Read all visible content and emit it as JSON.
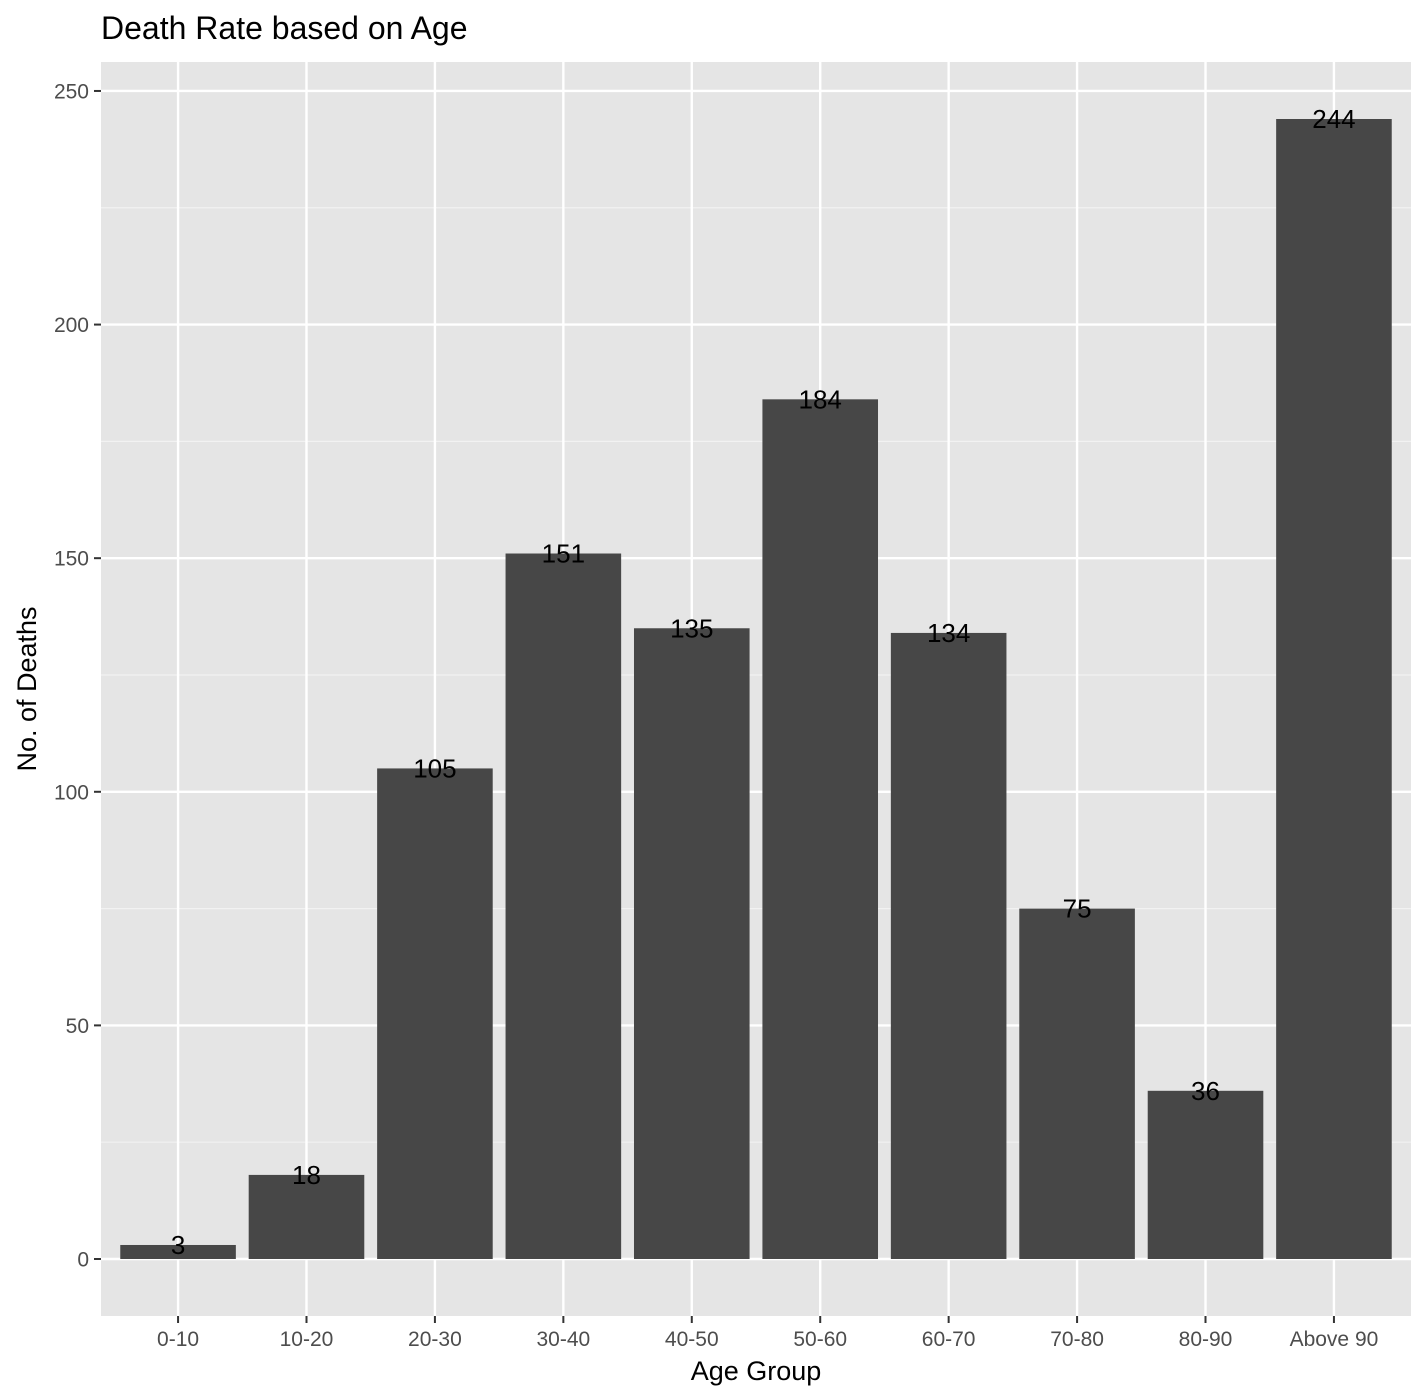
{
  "chart_data": {
    "type": "bar",
    "title": "Death Rate based on Age",
    "xlabel": "Age Group",
    "ylabel": "No. of Deaths",
    "categories": [
      "0-10",
      "10-20",
      "20-30",
      "30-40",
      "40-50",
      "50-60",
      "60-70",
      "70-80",
      "80-90",
      "Above 90"
    ],
    "values": [
      3,
      18,
      105,
      151,
      135,
      184,
      134,
      75,
      36,
      244
    ],
    "data_labels": [
      "3",
      "18",
      "105",
      "151",
      "135",
      "184",
      "134",
      "75",
      "36",
      "244"
    ],
    "yticks": [
      0,
      50,
      100,
      150,
      200,
      250
    ],
    "ytick_labels": [
      "0",
      "50",
      "100",
      "150",
      "200",
      "250"
    ],
    "ylim": [
      -12.2,
      256.2
    ],
    "grid": true,
    "legend": "none",
    "colors": {
      "panel_background": "#e5e5e5",
      "grid_major": "#ffffff",
      "grid_minor": "#f2f2f2",
      "bar_fill": "#474747",
      "tick_label": "#4d4d4d",
      "text": "#000000"
    }
  }
}
